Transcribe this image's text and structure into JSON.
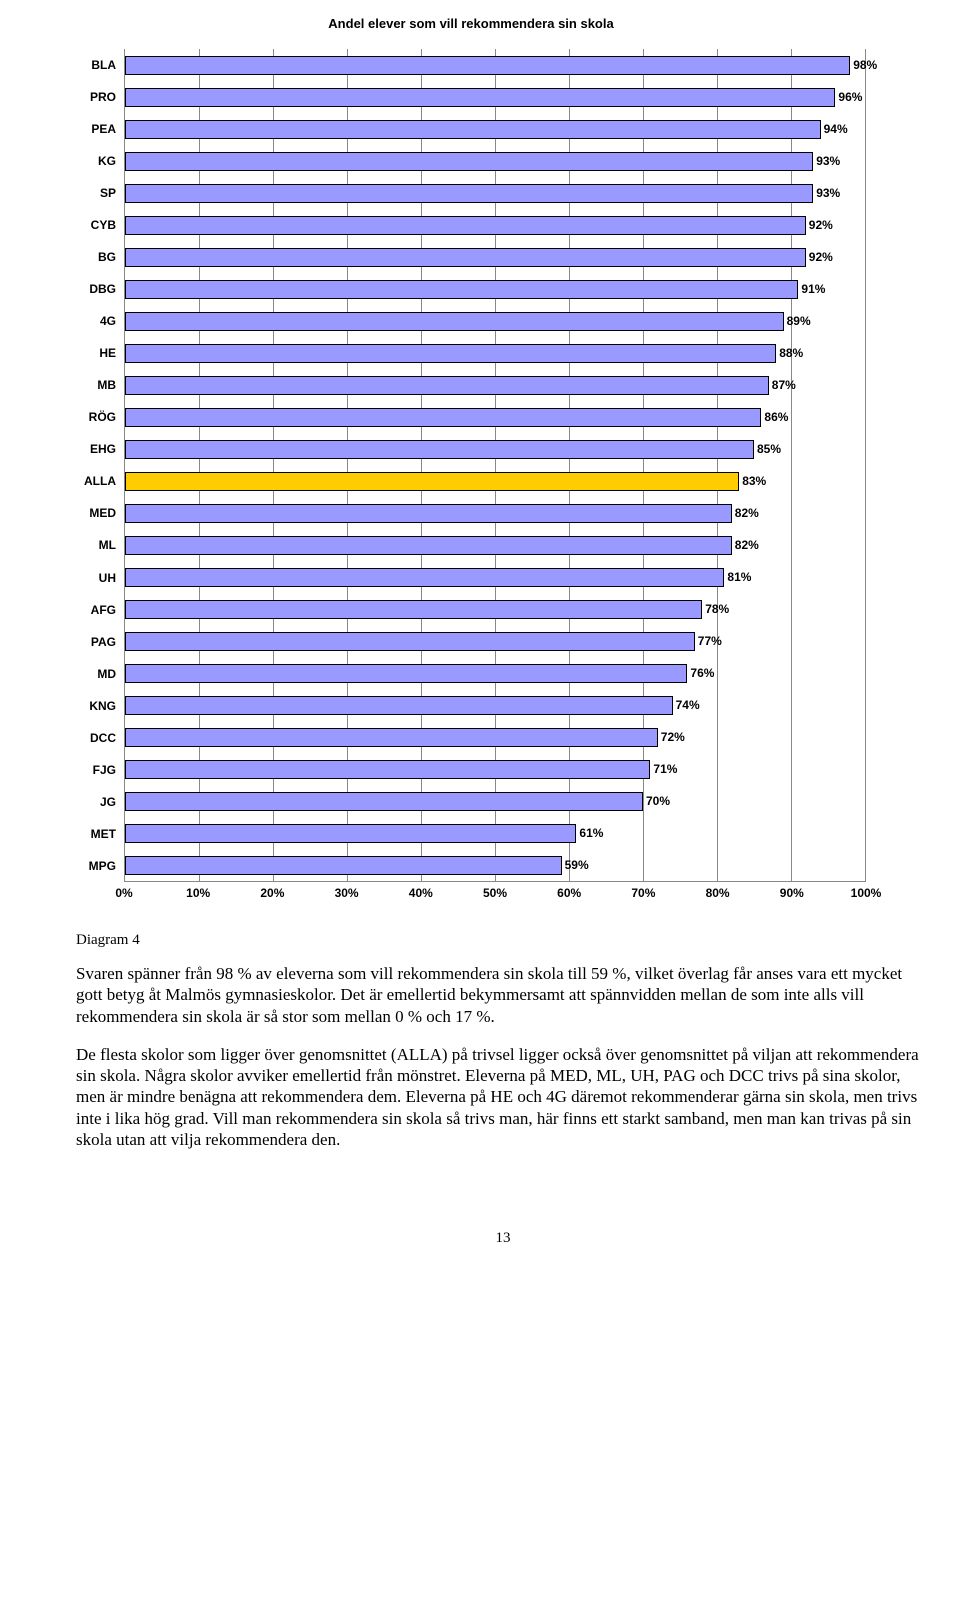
{
  "chart": {
    "title": "Andel elever som vill rekommendera sin skola",
    "bar_color_default": "#9999ff",
    "bar_color_highlight": "#ffcc00",
    "bar_border": "#000000",
    "grid_color": "#888888",
    "background": "#ffffff",
    "xlim": [
      0,
      100
    ],
    "xtick_step": 10,
    "xticks": [
      "0%",
      "10%",
      "20%",
      "30%",
      "40%",
      "50%",
      "60%",
      "70%",
      "80%",
      "90%",
      "100%"
    ],
    "bars": [
      {
        "label": "BLA",
        "value": 98,
        "value_label": "98%",
        "highlight": false
      },
      {
        "label": "PRO",
        "value": 96,
        "value_label": "96%",
        "highlight": false
      },
      {
        "label": "PEA",
        "value": 94,
        "value_label": "94%",
        "highlight": false
      },
      {
        "label": "KG",
        "value": 93,
        "value_label": "93%",
        "highlight": false
      },
      {
        "label": "SP",
        "value": 93,
        "value_label": "93%",
        "highlight": false
      },
      {
        "label": "CYB",
        "value": 92,
        "value_label": "92%",
        "highlight": false
      },
      {
        "label": "BG",
        "value": 92,
        "value_label": "92%",
        "highlight": false
      },
      {
        "label": "DBG",
        "value": 91,
        "value_label": "91%",
        "highlight": false
      },
      {
        "label": "4G",
        "value": 89,
        "value_label": "89%",
        "highlight": false
      },
      {
        "label": "HE",
        "value": 88,
        "value_label": "88%",
        "highlight": false
      },
      {
        "label": "MB",
        "value": 87,
        "value_label": "87%",
        "highlight": false
      },
      {
        "label": "RÖG",
        "value": 86,
        "value_label": "86%",
        "highlight": false
      },
      {
        "label": "EHG",
        "value": 85,
        "value_label": "85%",
        "highlight": false
      },
      {
        "label": "ALLA",
        "value": 83,
        "value_label": "83%",
        "highlight": true
      },
      {
        "label": "MED",
        "value": 82,
        "value_label": "82%",
        "highlight": false
      },
      {
        "label": "ML",
        "value": 82,
        "value_label": "82%",
        "highlight": false
      },
      {
        "label": "UH",
        "value": 81,
        "value_label": "81%",
        "highlight": false
      },
      {
        "label": "AFG",
        "value": 78,
        "value_label": "78%",
        "highlight": false
      },
      {
        "label": "PAG",
        "value": 77,
        "value_label": "77%",
        "highlight": false
      },
      {
        "label": "MD",
        "value": 76,
        "value_label": "76%",
        "highlight": false
      },
      {
        "label": "KNG",
        "value": 74,
        "value_label": "74%",
        "highlight": false
      },
      {
        "label": "DCC",
        "value": 72,
        "value_label": "72%",
        "highlight": false
      },
      {
        "label": "FJG",
        "value": 71,
        "value_label": "71%",
        "highlight": false
      },
      {
        "label": "JG",
        "value": 70,
        "value_label": "70%",
        "highlight": false
      },
      {
        "label": "MET",
        "value": 61,
        "value_label": "61%",
        "highlight": false
      },
      {
        "label": "MPG",
        "value": 59,
        "value_label": "59%",
        "highlight": false
      }
    ]
  },
  "caption": "Diagram 4",
  "paragraphs": [
    "Svaren spänner från 98 % av eleverna som vill rekommendera sin skola till 59 %, vilket överlag får anses vara ett mycket gott betyg åt Malmös gymnasieskolor. Det är emellertid bekymmersamt att spännvidden mellan de som inte alls vill rekommendera sin skola är så stor som mellan 0 % och 17 %.",
    "De flesta skolor som ligger över genomsnittet (ALLA) på trivsel ligger också över genomsnittet på viljan att rekommendera sin skola. Några skolor avviker emellertid från mönstret. Eleverna på MED, ML, UH, PAG och DCC trivs på sina skolor, men är mindre benägna att rekommendera dem. Eleverna på HE och 4G däremot rekommenderar gärna sin skola, men trivs inte i lika hög grad. Vill man rekommendera sin skola så trivs man, här finns ett starkt samband, men man kan trivas på sin skola utan att vilja rekommendera den."
  ],
  "page_number": "13"
}
